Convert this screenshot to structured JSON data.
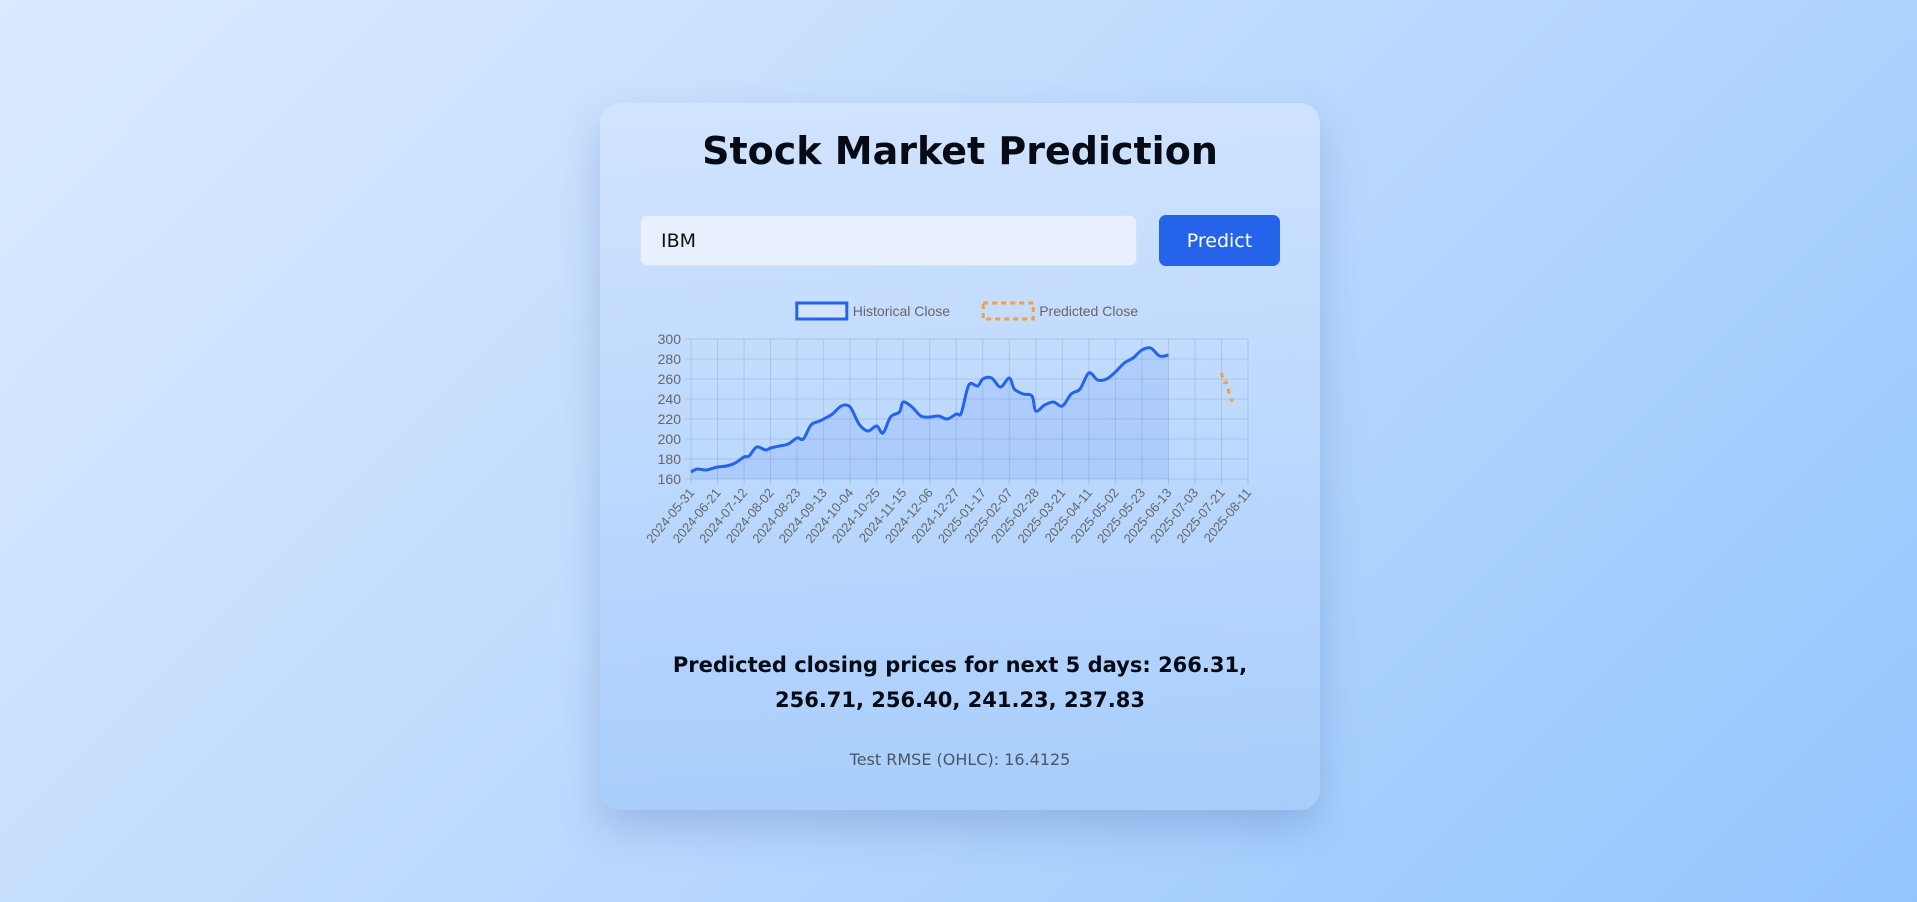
{
  "page": {
    "title": "Stock Market Prediction"
  },
  "form": {
    "ticker_value": "IBM",
    "predict_label": "Predict"
  },
  "summary": {
    "prefix": "Predicted closing prices for next 5 days:",
    "values": "266.31, 256.71, 256.40, 241.23, 237.83",
    "rmse": "Test RMSE (OHLC): 16.4125"
  },
  "colors": {
    "historical": "#2563eb",
    "historical_fill": "rgba(37,99,235,0.10)",
    "predicted": "#f59e3b",
    "grid": "rgba(0,0,0,0.10)",
    "tick_text": "#666666"
  },
  "chart_data": {
    "type": "line",
    "title": "",
    "xlabel": "",
    "ylabel": "",
    "ylim": [
      160,
      300
    ],
    "yticks": [
      160,
      180,
      200,
      220,
      240,
      260,
      280,
      300
    ],
    "grid": true,
    "legend_position": "top",
    "x_tick_labels": [
      "2024-05-31",
      "2024-06-21",
      "2024-07-12",
      "2024-08-02",
      "2024-08-23",
      "2024-09-13",
      "2024-10-04",
      "2024-10-25",
      "2024-11-15",
      "2024-12-06",
      "2024-12-27",
      "2025-01-17",
      "2025-02-07",
      "2025-02-28",
      "2025-03-21",
      "2025-04-11",
      "2025-05-02",
      "2025-05-23",
      "2025-06-13",
      "2025-07-03",
      "2025-07-21",
      "2025-08-11"
    ],
    "series": [
      {
        "name": "Historical Close",
        "style": "solid",
        "filled": true,
        "points": [
          [
            "2024-05-31",
            167
          ],
          [
            "2024-06-05",
            170
          ],
          [
            "2024-06-12",
            169
          ],
          [
            "2024-06-21",
            172
          ],
          [
            "2024-06-28",
            173
          ],
          [
            "2024-07-05",
            176
          ],
          [
            "2024-07-12",
            182
          ],
          [
            "2024-07-16",
            183
          ],
          [
            "2024-07-22",
            192
          ],
          [
            "2024-07-29",
            189
          ],
          [
            "2024-08-02",
            191
          ],
          [
            "2024-08-09",
            193
          ],
          [
            "2024-08-16",
            195
          ],
          [
            "2024-08-23",
            201
          ],
          [
            "2024-08-28",
            200
          ],
          [
            "2024-09-03",
            214
          ],
          [
            "2024-09-10",
            218
          ],
          [
            "2024-09-13",
            220
          ],
          [
            "2024-09-20",
            225
          ],
          [
            "2024-09-27",
            233
          ],
          [
            "2024-10-04",
            232
          ],
          [
            "2024-10-11",
            215
          ],
          [
            "2024-10-18",
            208
          ],
          [
            "2024-10-25",
            213
          ],
          [
            "2024-10-30",
            206
          ],
          [
            "2024-11-05",
            222
          ],
          [
            "2024-11-12",
            227
          ],
          [
            "2024-11-15",
            237
          ],
          [
            "2024-11-22",
            232
          ],
          [
            "2024-11-29",
            223
          ],
          [
            "2024-12-06",
            222
          ],
          [
            "2024-12-13",
            223
          ],
          [
            "2024-12-20",
            220
          ],
          [
            "2024-12-27",
            225
          ],
          [
            "2024-12-31",
            226
          ],
          [
            "2025-01-06",
            254
          ],
          [
            "2025-01-13",
            253
          ],
          [
            "2025-01-17",
            260
          ],
          [
            "2025-01-24",
            261
          ],
          [
            "2025-01-31",
            252
          ],
          [
            "2025-02-07",
            261
          ],
          [
            "2025-02-11",
            250
          ],
          [
            "2025-02-18",
            245
          ],
          [
            "2025-02-25",
            243
          ],
          [
            "2025-02-28",
            228
          ],
          [
            "2025-03-07",
            234
          ],
          [
            "2025-03-14",
            237
          ],
          [
            "2025-03-21",
            233
          ],
          [
            "2025-03-28",
            245
          ],
          [
            "2025-04-04",
            250
          ],
          [
            "2025-04-11",
            266
          ],
          [
            "2025-04-18",
            259
          ],
          [
            "2025-04-25",
            260
          ],
          [
            "2025-05-02",
            267
          ],
          [
            "2025-05-09",
            276
          ],
          [
            "2025-05-16",
            281
          ],
          [
            "2025-05-23",
            289
          ],
          [
            "2025-05-30",
            291
          ],
          [
            "2025-06-06",
            283
          ],
          [
            "2025-06-13",
            284
          ]
        ]
      },
      {
        "name": "Predicted Close",
        "style": "dashed",
        "filled": false,
        "points": [
          [
            "2025-07-21",
            266.31
          ],
          [
            "2025-07-23",
            256.71
          ],
          [
            "2025-07-25",
            256.4
          ],
          [
            "2025-07-28",
            241.23
          ],
          [
            "2025-07-30",
            237.83
          ]
        ]
      }
    ]
  }
}
